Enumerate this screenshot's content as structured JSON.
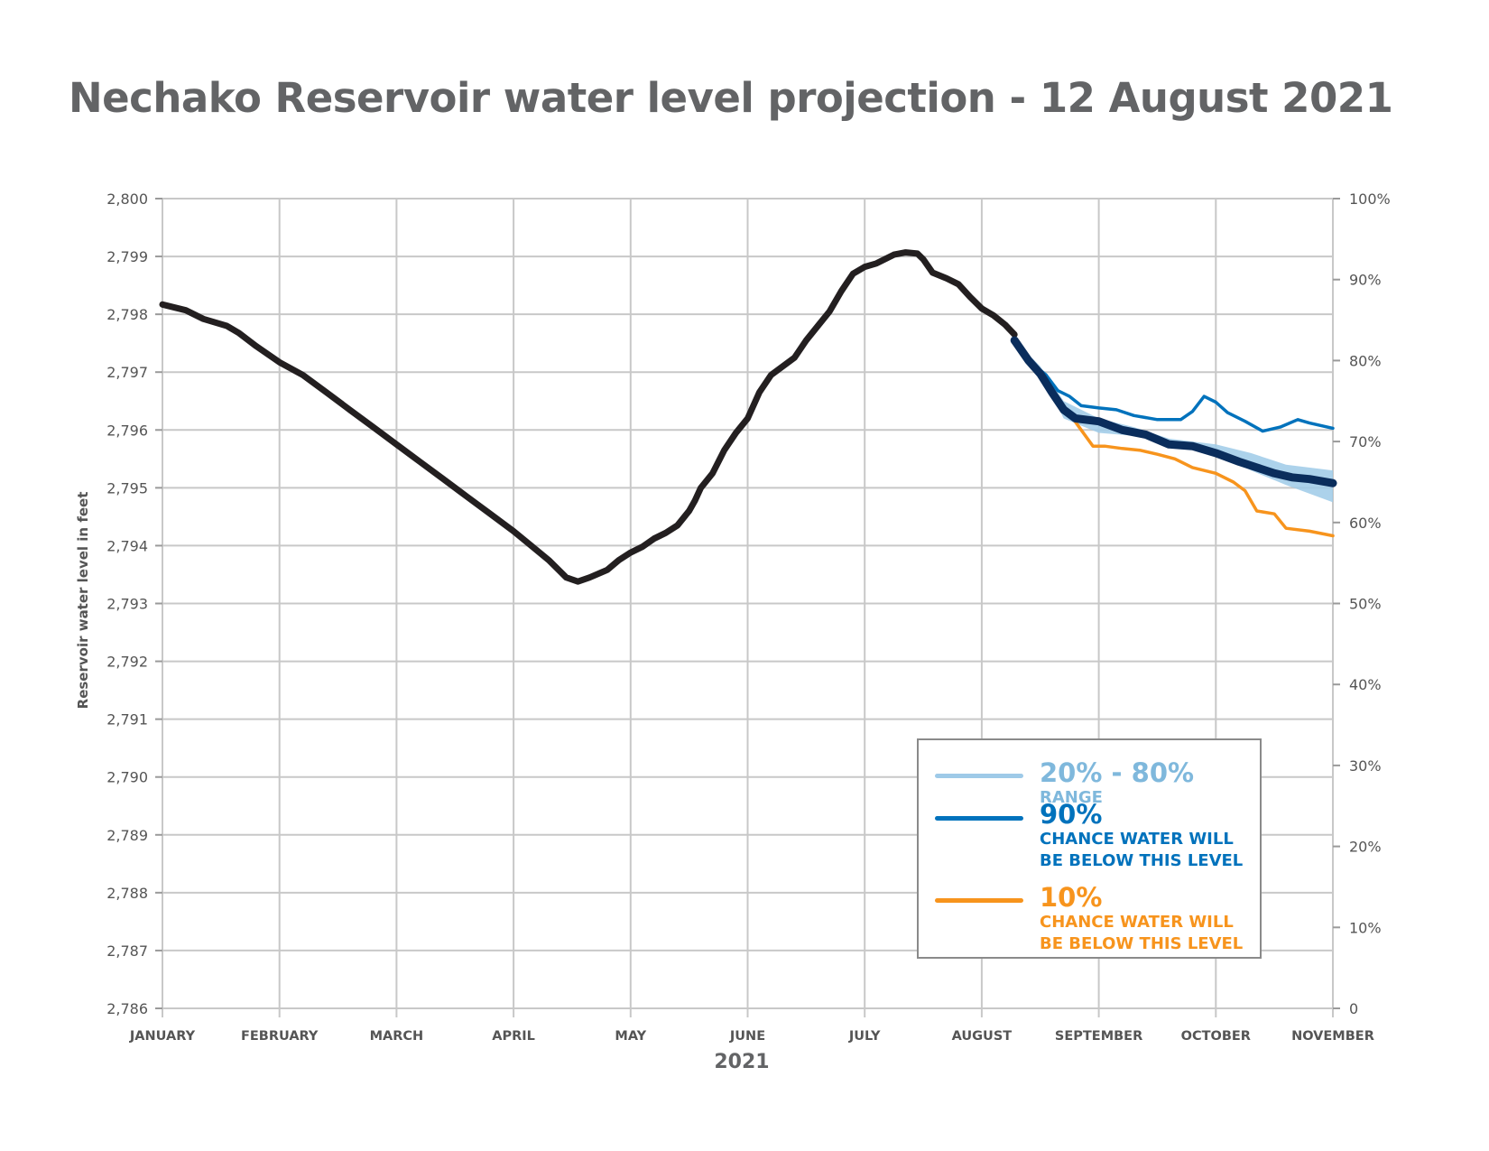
{
  "title": "Nechako Reservoir water level projection - 12 August 2021",
  "colors": {
    "historical": "#231f20",
    "p90": "#0072bc",
    "median": "#0a2d5c",
    "p10": "#f7941d",
    "range": "#9ecae8",
    "grid": "#c8c8c8",
    "text": "#636466"
  },
  "legend": {
    "range": {
      "big": "20% - 80%",
      "small": "RANGE"
    },
    "p90": {
      "big": "90%",
      "line1": "CHANCE WATER WILL",
      "line2": "BE BELOW THIS LEVEL"
    },
    "p10": {
      "big": "10%",
      "line1": "CHANCE WATER WILL",
      "line2": "BE BELOW THIS LEVEL"
    }
  },
  "chart_data": {
    "type": "line",
    "xlabel": "2021",
    "ylabel": "Reservoir water level in feet",
    "x_categories": [
      "JANUARY",
      "FEBRUARY",
      "MARCH",
      "APRIL",
      "MAY",
      "JUNE",
      "JULY",
      "AUGUST",
      "SEPTEMBER",
      "OCTOBER",
      "NOVEMBER"
    ],
    "x_unit": "months since January 1",
    "xlim": [
      0,
      10
    ],
    "ylim": [
      2786,
      2800
    ],
    "y_ticks": [
      "2,786",
      "2,787",
      "2,788",
      "2,789",
      "2,790",
      "2,791",
      "2,792",
      "2,793",
      "2,794",
      "2,795",
      "2,796",
      "2,797",
      "2,798",
      "2,799",
      "2,800"
    ],
    "y2_ticks": [
      "0",
      "10%",
      "20%",
      "30%",
      "40%",
      "50%",
      "60%",
      "70%",
      "80%",
      "90%",
      "100%"
    ],
    "grid": true,
    "legend_position": "bottom-right",
    "series": [
      {
        "name": "",
        "role": "historical",
        "points": [
          [
            0,
            2798.17
          ],
          [
            0.2,
            2798.07
          ],
          [
            0.35,
            2797.92
          ],
          [
            0.55,
            2797.8
          ],
          [
            0.65,
            2797.68
          ],
          [
            0.8,
            2797.45
          ],
          [
            1.0,
            2797.17
          ],
          [
            1.2,
            2796.95
          ],
          [
            1.4,
            2796.65
          ],
          [
            1.6,
            2796.35
          ],
          [
            1.8,
            2796.05
          ],
          [
            2.0,
            2795.75
          ],
          [
            2.2,
            2795.45
          ],
          [
            2.4,
            2795.15
          ],
          [
            2.6,
            2794.85
          ],
          [
            2.8,
            2794.55
          ],
          [
            3.0,
            2794.25
          ],
          [
            3.15,
            2794.0
          ],
          [
            3.3,
            2793.75
          ],
          [
            3.45,
            2793.45
          ],
          [
            3.55,
            2793.38
          ],
          [
            3.65,
            2793.45
          ],
          [
            3.8,
            2793.58
          ],
          [
            3.9,
            2793.75
          ],
          [
            4.0,
            2793.88
          ],
          [
            4.1,
            2793.98
          ],
          [
            4.2,
            2794.12
          ],
          [
            4.3,
            2794.22
          ],
          [
            4.4,
            2794.35
          ],
          [
            4.5,
            2794.6
          ],
          [
            4.55,
            2794.78
          ],
          [
            4.6,
            2795.0
          ],
          [
            4.7,
            2795.25
          ],
          [
            4.8,
            2795.65
          ],
          [
            4.9,
            2795.95
          ],
          [
            5.0,
            2796.2
          ],
          [
            5.1,
            2796.65
          ],
          [
            5.2,
            2796.95
          ],
          [
            5.3,
            2797.1
          ],
          [
            5.4,
            2797.25
          ],
          [
            5.5,
            2797.55
          ],
          [
            5.6,
            2797.8
          ],
          [
            5.7,
            2798.05
          ],
          [
            5.8,
            2798.4
          ],
          [
            5.9,
            2798.7
          ],
          [
            6.0,
            2798.82
          ],
          [
            6.1,
            2798.88
          ],
          [
            6.25,
            2799.03
          ],
          [
            6.35,
            2799.07
          ],
          [
            6.45,
            2799.05
          ],
          [
            6.5,
            2798.95
          ],
          [
            6.58,
            2798.72
          ],
          [
            6.7,
            2798.62
          ],
          [
            6.8,
            2798.52
          ],
          [
            6.9,
            2798.3
          ],
          [
            7.0,
            2798.1
          ],
          [
            7.1,
            2797.98
          ],
          [
            7.2,
            2797.82
          ],
          [
            7.28,
            2797.65
          ]
        ]
      },
      {
        "name": "90%",
        "role": "p90",
        "points": [
          [
            7.28,
            2797.55
          ],
          [
            7.4,
            2797.2
          ],
          [
            7.55,
            2796.95
          ],
          [
            7.65,
            2796.68
          ],
          [
            7.75,
            2796.58
          ],
          [
            7.85,
            2796.42
          ],
          [
            8.0,
            2796.38
          ],
          [
            8.15,
            2796.35
          ],
          [
            8.3,
            2796.25
          ],
          [
            8.5,
            2796.18
          ],
          [
            8.7,
            2796.18
          ],
          [
            8.8,
            2796.32
          ],
          [
            8.9,
            2796.58
          ],
          [
            9.0,
            2796.48
          ],
          [
            9.1,
            2796.3
          ],
          [
            9.25,
            2796.15
          ],
          [
            9.4,
            2795.98
          ],
          [
            9.55,
            2796.05
          ],
          [
            9.7,
            2796.18
          ],
          [
            9.8,
            2796.12
          ],
          [
            10.0,
            2796.03
          ]
        ]
      },
      {
        "name": "",
        "role": "median",
        "points": [
          [
            7.28,
            2797.55
          ],
          [
            7.4,
            2797.2
          ],
          [
            7.5,
            2796.97
          ],
          [
            7.6,
            2796.65
          ],
          [
            7.7,
            2796.35
          ],
          [
            7.8,
            2796.2
          ],
          [
            8.0,
            2796.15
          ],
          [
            8.2,
            2796.0
          ],
          [
            8.4,
            2795.92
          ],
          [
            8.6,
            2795.75
          ],
          [
            8.8,
            2795.72
          ],
          [
            9.0,
            2795.6
          ],
          [
            9.2,
            2795.45
          ],
          [
            9.35,
            2795.35
          ],
          [
            9.5,
            2795.25
          ],
          [
            9.65,
            2795.18
          ],
          [
            9.8,
            2795.15
          ],
          [
            10.0,
            2795.08
          ]
        ]
      },
      {
        "name": "10%",
        "role": "p10",
        "points": [
          [
            7.75,
            2796.28
          ],
          [
            7.85,
            2796.0
          ],
          [
            7.95,
            2795.72
          ],
          [
            8.05,
            2795.72
          ],
          [
            8.2,
            2795.68
          ],
          [
            8.35,
            2795.65
          ],
          [
            8.5,
            2795.58
          ],
          [
            8.65,
            2795.5
          ],
          [
            8.8,
            2795.35
          ],
          [
            9.0,
            2795.25
          ],
          [
            9.15,
            2795.1
          ],
          [
            9.25,
            2794.95
          ],
          [
            9.35,
            2794.6
          ],
          [
            9.5,
            2794.55
          ],
          [
            9.6,
            2794.3
          ],
          [
            9.8,
            2794.25
          ],
          [
            10.0,
            2794.17
          ]
        ]
      },
      {
        "name": "20% - 80%",
        "role": "range",
        "lower": [
          [
            7.28,
            2797.55
          ],
          [
            7.5,
            2797.0
          ],
          [
            7.7,
            2796.2
          ],
          [
            8.0,
            2795.95
          ],
          [
            8.3,
            2795.9
          ],
          [
            8.6,
            2795.75
          ],
          [
            9.0,
            2795.6
          ],
          [
            9.3,
            2795.3
          ],
          [
            9.6,
            2795.05
          ],
          [
            10.0,
            2794.75
          ]
        ],
        "upper": [
          [
            7.28,
            2797.55
          ],
          [
            7.5,
            2797.1
          ],
          [
            7.7,
            2796.5
          ],
          [
            8.0,
            2796.2
          ],
          [
            8.3,
            2796.05
          ],
          [
            8.6,
            2795.85
          ],
          [
            9.0,
            2795.75
          ],
          [
            9.3,
            2795.6
          ],
          [
            9.6,
            2795.4
          ],
          [
            10.0,
            2795.3
          ]
        ]
      }
    ]
  }
}
